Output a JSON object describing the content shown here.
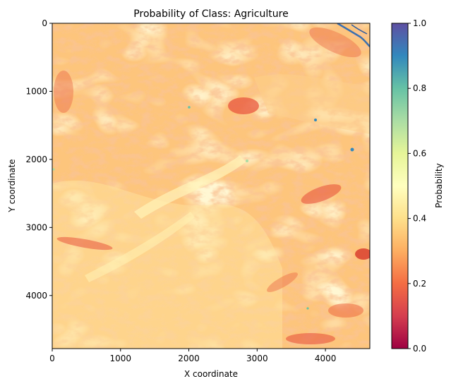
{
  "chart_data": {
    "type": "heatmap",
    "title": "Probability of Class: Agriculture",
    "xlabel": "X coordinate",
    "ylabel": "Y coordinate",
    "xlim": [
      0,
      4650
    ],
    "ylim": [
      4780,
      0
    ],
    "x_ticks": [
      0,
      1000,
      2000,
      3000,
      4000
    ],
    "y_ticks": [
      0,
      1000,
      2000,
      3000,
      4000
    ],
    "x_tick_labels": [
      "0",
      "1000",
      "2000",
      "3000",
      "4000"
    ],
    "y_tick_labels": [
      "0",
      "1000",
      "2000",
      "3000",
      "4000"
    ],
    "colormap": "Spectral",
    "colorbar": {
      "label": "Probability",
      "range": [
        0.0,
        1.0
      ],
      "ticks": [
        0.0,
        0.2,
        0.4,
        0.6,
        0.8,
        1.0
      ],
      "tick_labels": [
        "0.0",
        "0.2",
        "0.4",
        "0.6",
        "0.8",
        "1.0"
      ]
    },
    "typical_value_range": [
      0.25,
      0.45
    ],
    "grid": false
  }
}
